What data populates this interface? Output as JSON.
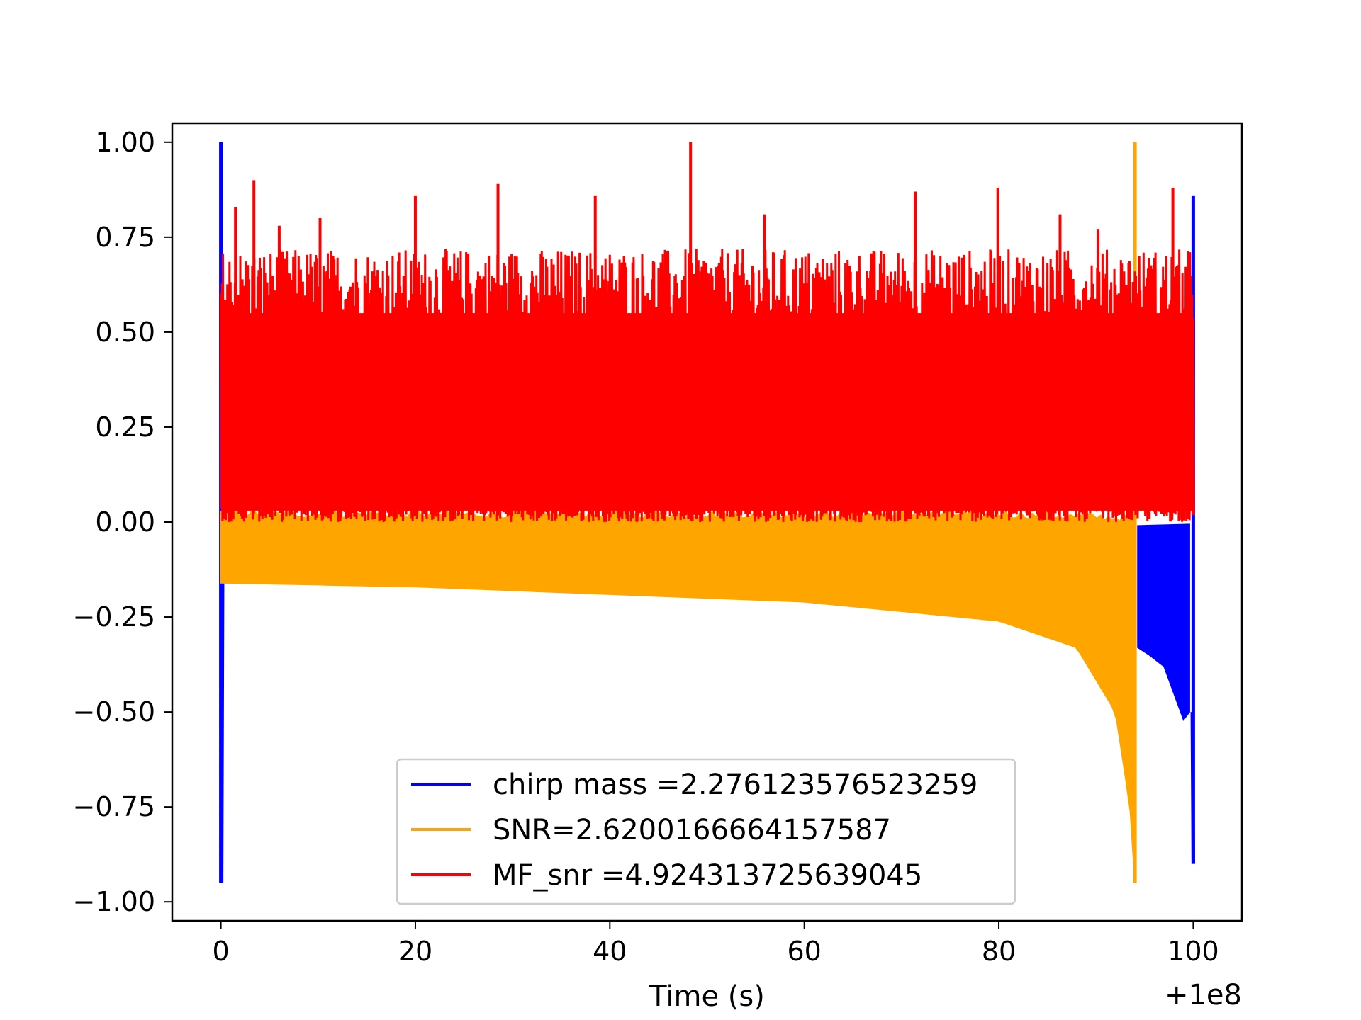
{
  "chart_data": {
    "type": "line",
    "title": "",
    "xlabel": "Time (s)",
    "ylabel": "",
    "x_offset_label": "+1e8",
    "xlim": [
      -5,
      105
    ],
    "ylim": [
      -1.05,
      1.05
    ],
    "x_ticks": [
      0,
      20,
      40,
      60,
      80,
      100
    ],
    "x_tick_labels": [
      "0",
      "20",
      "40",
      "60",
      "80",
      "100"
    ],
    "y_ticks": [
      1.0,
      0.75,
      0.5,
      0.25,
      0.0,
      -0.25,
      -0.5,
      -0.75,
      -1.0
    ],
    "y_tick_labels": [
      "1.00",
      "0.75",
      "0.50",
      "0.25",
      "0.00",
      "−0.25",
      "−0.50",
      "−0.75",
      "−1.00"
    ],
    "grid": false,
    "legend_position": "lower-center",
    "series": [
      {
        "name": "chirp mass =2.276123576523259",
        "color": "#0000ff",
        "description_points": [
          {
            "x": 0.0,
            "y": 1.0
          },
          {
            "x": 0.0,
            "y": -0.95
          },
          {
            "x": 0.1,
            "y": -0.16
          },
          {
            "x": 94.3,
            "y": -0.01
          },
          {
            "x": 94.3,
            "y": -0.33
          },
          {
            "x": 97.0,
            "y": -0.38
          },
          {
            "x": 99.0,
            "y": -0.52
          },
          {
            "x": 100.0,
            "y": -0.9
          },
          {
            "x": 100.0,
            "y": 0.86
          }
        ]
      },
      {
        "name": "SNR=2.6200166664157587",
        "color": "#ffa500",
        "envelope_top": [
          [
            0,
            0.02
          ],
          [
            20,
            0.02
          ],
          [
            40,
            0.02
          ],
          [
            60,
            0.02
          ],
          [
            80,
            0.02
          ],
          [
            94,
            0.01
          ]
        ],
        "envelope_bottom": [
          [
            0,
            -0.16
          ],
          [
            20,
            -0.17
          ],
          [
            40,
            -0.19
          ],
          [
            60,
            -0.21
          ],
          [
            80,
            -0.26
          ],
          [
            88,
            -0.33
          ],
          [
            92,
            -0.5
          ],
          [
            93.5,
            -0.75
          ],
          [
            94.0,
            -0.95
          ]
        ],
        "peak": {
          "x": 94.0,
          "y": 1.0
        }
      },
      {
        "name": "MF_snr =4.924313725639045",
        "color": "#ff0000",
        "band": [
          0.0,
          0.55
        ],
        "x_range": [
          0,
          100
        ],
        "peaks": [
          {
            "x": 48.3,
            "y": 1.0
          },
          {
            "x": 3.4,
            "y": 0.9
          },
          {
            "x": 28.5,
            "y": 0.89
          },
          {
            "x": 20.0,
            "y": 0.86
          },
          {
            "x": 38.5,
            "y": 0.86
          },
          {
            "x": 71.4,
            "y": 0.87
          },
          {
            "x": 79.9,
            "y": 0.88
          },
          {
            "x": 97.9,
            "y": 0.88
          },
          {
            "x": 90.2,
            "y": 0.77
          },
          {
            "x": 1.5,
            "y": 0.83
          },
          {
            "x": 10.2,
            "y": 0.8
          },
          {
            "x": 55.9,
            "y": 0.81
          },
          {
            "x": 86.3,
            "y": 0.81
          },
          {
            "x": 6.0,
            "y": 0.78
          }
        ]
      }
    ]
  }
}
